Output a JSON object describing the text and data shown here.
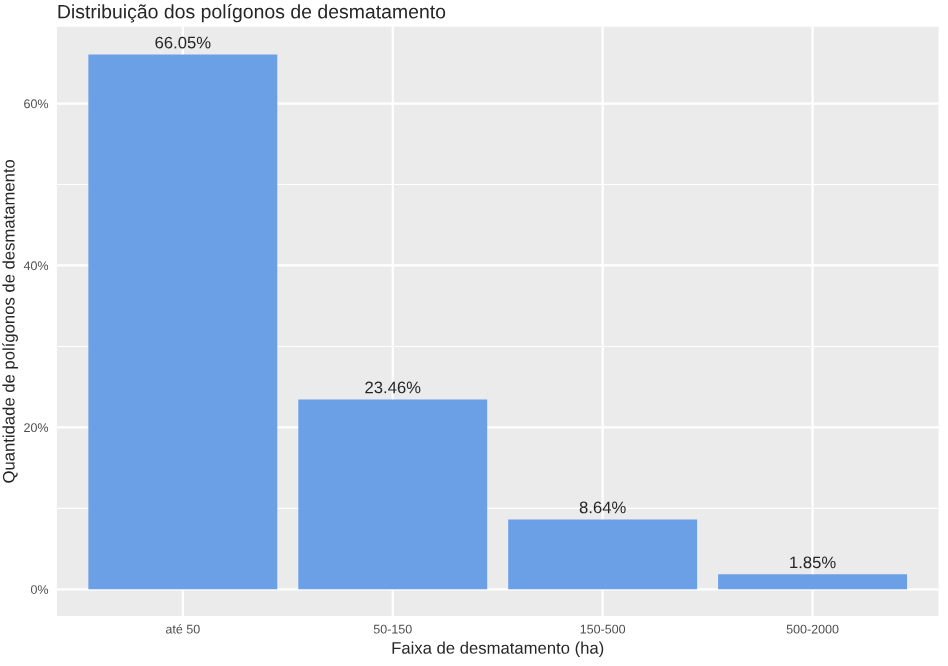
{
  "chart_data": {
    "type": "bar",
    "title": "Distribuição dos polígonos de desmatamento",
    "xlabel": "Faixa de desmatamento (ha)",
    "ylabel": "Quantidade de polígonos de desmatamento",
    "categories": [
      "até 50",
      "50-150",
      "150-500",
      "500-2000"
    ],
    "values": [
      66.05,
      23.46,
      8.64,
      1.85
    ],
    "color": "#6ca0e6",
    "value_labels": [
      "66.05%",
      "23.46%",
      "8.64%",
      "1.85%"
    ],
    "ylim": [
      -3.3,
      69.5
    ],
    "yticks": [
      {
        "value": 0,
        "label": "0%"
      },
      {
        "value": 20,
        "label": "20%"
      },
      {
        "value": 40,
        "label": "40%"
      },
      {
        "value": 60,
        "label": "60%"
      }
    ],
    "grid": true
  }
}
